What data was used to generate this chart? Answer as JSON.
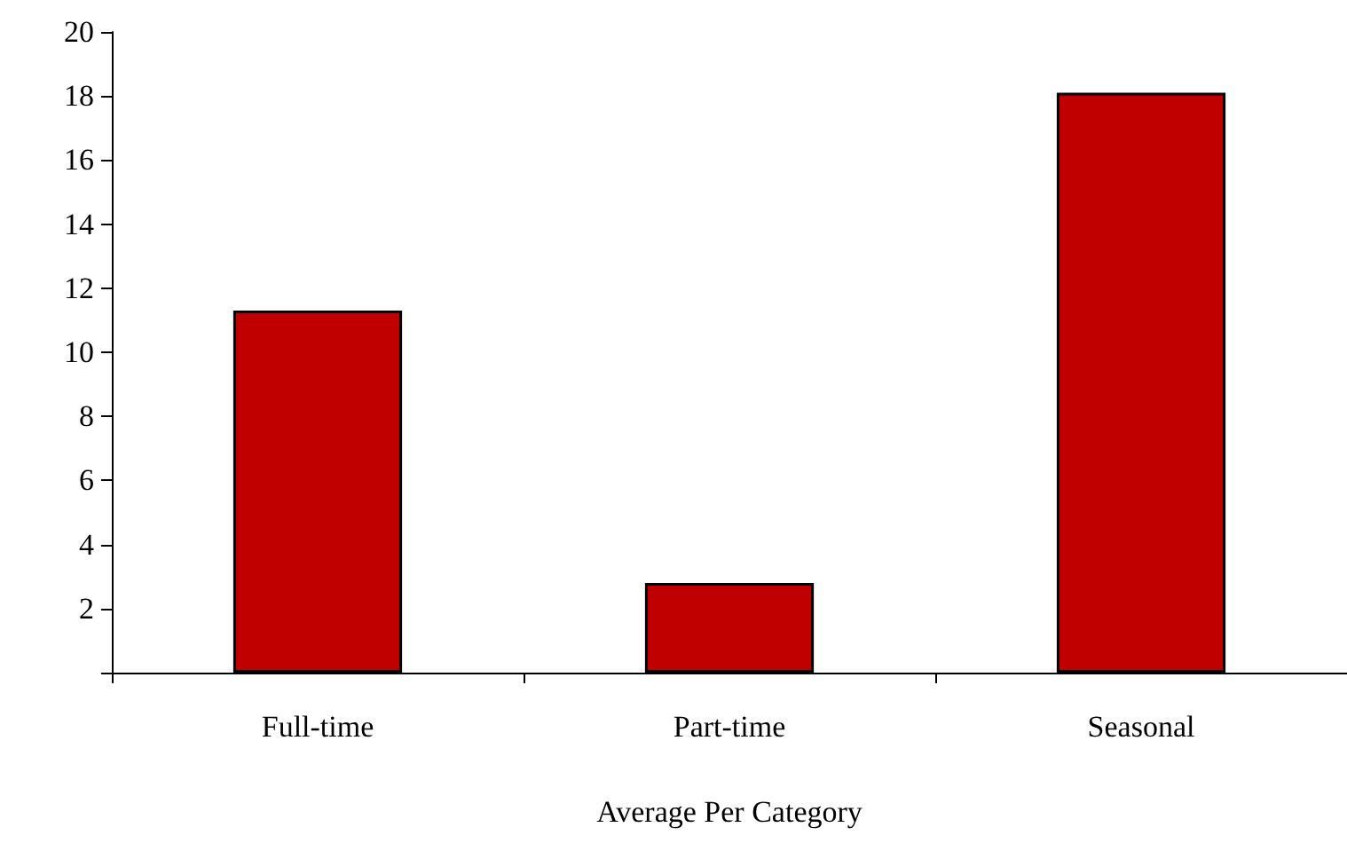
{
  "chart_data": {
    "type": "bar",
    "xlabel": "Average Per Category",
    "categories": [
      "Full-time",
      "Part-time",
      "Seasonal"
    ],
    "values": [
      11.3,
      2.8,
      18.1
    ],
    "color": "#c00000",
    "ylim": [
      0,
      20
    ],
    "yticks": [
      {
        "value": 0,
        "label": null
      },
      2,
      4,
      6,
      8,
      10,
      12,
      14,
      16,
      18,
      20
    ],
    "grid": false
  }
}
